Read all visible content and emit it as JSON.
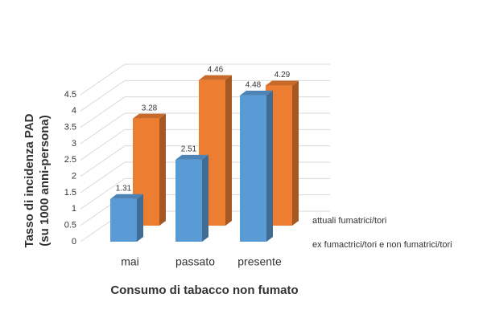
{
  "chart_data": {
    "type": "bar3d",
    "ylabel": [
      "Tasso di incidenza PAD",
      "(su 1000 anni-persona)"
    ],
    "xlabel": "Consumo di tabacco non fumato",
    "categories": [
      "mai",
      "passato",
      "presente"
    ],
    "series": [
      {
        "name": "attuali fumatrici/tori",
        "color": "#5b9bd5",
        "values": [
          1.31,
          2.51,
          4.48
        ]
      },
      {
        "name": "ex fumactrici/tori e non fumatrici/tori",
        "color": "#ed7d31",
        "values": [
          3.28,
          4.46,
          4.29
        ]
      }
    ],
    "ylim": [
      0,
      4.5
    ],
    "yticks": [
      0,
      0.5,
      1,
      1.5,
      2,
      2.5,
      3,
      3.5,
      4,
      4.5
    ],
    "grid": true
  }
}
